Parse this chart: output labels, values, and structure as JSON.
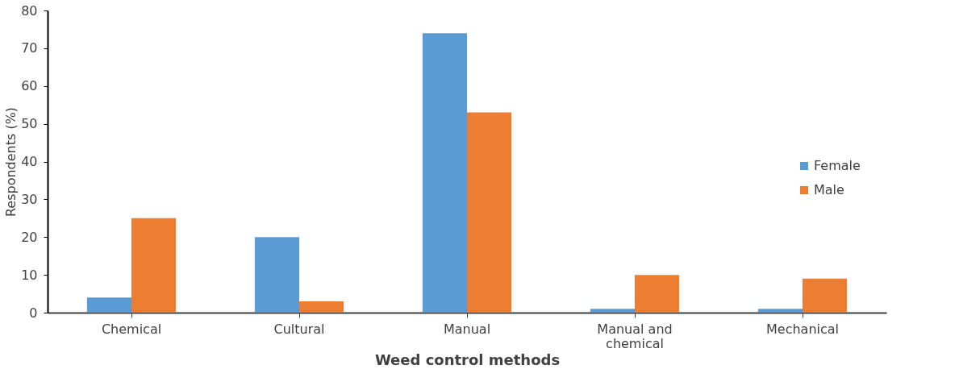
{
  "chart_data": {
    "type": "bar",
    "xlabel": "Weed control methods",
    "ylabel": "Respondents (%)",
    "categories": [
      "Chemical",
      "Cultural",
      "Manual",
      "Manual and chemical",
      "Mechanical"
    ],
    "series": [
      {
        "name": "Female",
        "color": "#5b9bd5",
        "values": [
          4,
          20,
          74,
          1,
          1
        ]
      },
      {
        "name": "Male",
        "color": "#ed7d31",
        "values": [
          25,
          3,
          53,
          10,
          9
        ]
      }
    ],
    "ylim": [
      0,
      80
    ],
    "yticks": [
      0,
      10,
      20,
      30,
      40,
      50,
      60,
      70,
      80
    ],
    "grid": false,
    "legend": "right"
  }
}
